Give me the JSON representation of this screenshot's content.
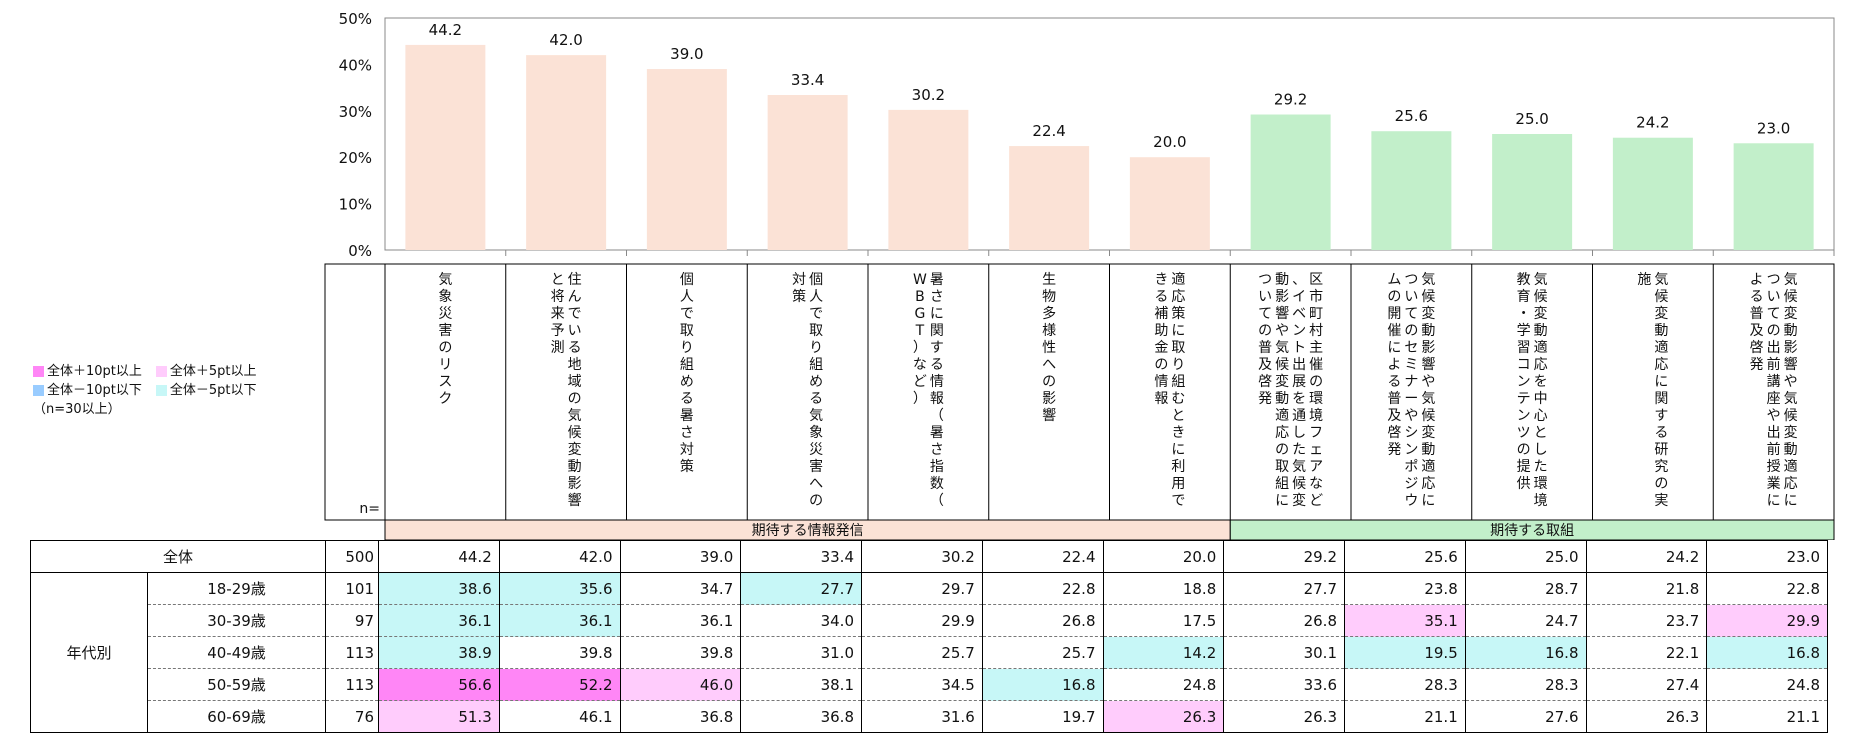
{
  "chart_data": {
    "type": "bar",
    "ylim": [
      0,
      50
    ],
    "yticks": [
      "0%",
      "10%",
      "20%",
      "30%",
      "40%",
      "50%"
    ],
    "categories": [
      "気象災害のリスク",
      "住んでいる地域の気候変動影響と将来予測",
      "個人で取り組める暑さ対策",
      "個人で取り組める気象災害への対策",
      "暑さに関する情報（暑さ指数（WBGT）など）",
      "生物多様性への影響",
      "適応策に取り組むときに利用できる補助金の情報",
      "区市町村主催の環境フェアなど、イベント出展を通した気候変動影響や気候変動適応の取組についての普及啓発",
      "気候変動影響や気候変動適応についてのセミナーやシンポジウムの開催による普及啓発",
      "気候変動適応を中心とした環境教育・学習コンテンツの提供",
      "気候変動適応に関する研究の実施",
      "気候変動影響や気候変動適応についての出前講座や出前授業による普及啓発"
    ],
    "values": [
      44.2,
      42.0,
      39.0,
      33.4,
      30.2,
      22.4,
      20.0,
      29.2,
      25.6,
      25.0,
      24.2,
      23.0
    ],
    "groups": [
      {
        "label": "期待する情報発信",
        "count": 7,
        "bar_color": "#FBE2D6",
        "head_color": "#FBE2D6"
      },
      {
        "label": "期待する取組",
        "count": 5,
        "bar_color": "#C2EFCA",
        "head_color": "#C2EFCA"
      }
    ]
  },
  "legend": {
    "items": [
      {
        "label": "全体＋10pt以上",
        "color": "#FF86F6"
      },
      {
        "label": "全体＋5pt以上",
        "color": "#FFCCFC"
      },
      {
        "label": "全体－10pt以下",
        "color": "#99CCFF"
      },
      {
        "label": "全体－5pt以下",
        "color": "#C7F7F7"
      }
    ],
    "note": "（n=30以上）"
  },
  "table": {
    "n_header": "n=",
    "group_label": "年代別",
    "total": {
      "label": "全体",
      "n": "500",
      "values": [
        "44.2",
        "42.0",
        "39.0",
        "33.4",
        "30.2",
        "22.4",
        "20.0",
        "29.2",
        "25.6",
        "25.0",
        "24.2",
        "23.0"
      ]
    },
    "rows": [
      {
        "label": "18-29歳",
        "n": "101",
        "values": [
          "38.6",
          "35.6",
          "34.7",
          "27.7",
          "29.7",
          "22.8",
          "18.8",
          "27.7",
          "23.8",
          "28.7",
          "21.8",
          "22.8"
        ],
        "highlights": [
          "minus5",
          "minus5",
          "",
          "minus5",
          "",
          "",
          "",
          "",
          "",
          "",
          "",
          ""
        ]
      },
      {
        "label": "30-39歳",
        "n": "97",
        "values": [
          "36.1",
          "36.1",
          "36.1",
          "34.0",
          "29.9",
          "26.8",
          "17.5",
          "26.8",
          "35.1",
          "24.7",
          "23.7",
          "29.9"
        ],
        "highlights": [
          "minus5",
          "minus5",
          "",
          "",
          "",
          "",
          "",
          "",
          "plus5",
          "",
          "",
          "plus5"
        ]
      },
      {
        "label": "40-49歳",
        "n": "113",
        "values": [
          "38.9",
          "39.8",
          "39.8",
          "31.0",
          "25.7",
          "25.7",
          "14.2",
          "30.1",
          "19.5",
          "16.8",
          "22.1",
          "16.8"
        ],
        "highlights": [
          "minus5",
          "",
          "",
          "",
          "",
          "",
          "minus5",
          "",
          "minus5",
          "minus5",
          "",
          "minus5"
        ]
      },
      {
        "label": "50-59歳",
        "n": "113",
        "values": [
          "56.6",
          "52.2",
          "46.0",
          "38.1",
          "34.5",
          "16.8",
          "24.8",
          "33.6",
          "28.3",
          "28.3",
          "27.4",
          "24.8"
        ],
        "highlights": [
          "plus10",
          "plus10",
          "plus5",
          "",
          "",
          "minus5",
          "",
          "",
          "",
          "",
          "",
          ""
        ]
      },
      {
        "label": "60-69歳",
        "n": "76",
        "values": [
          "51.3",
          "46.1",
          "36.8",
          "36.8",
          "31.6",
          "19.7",
          "26.3",
          "26.3",
          "21.1",
          "27.6",
          "26.3",
          "21.1"
        ],
        "highlights": [
          "plus5",
          "",
          "",
          "",
          "",
          "",
          "plus5",
          "",
          "",
          "",
          "",
          ""
        ]
      }
    ]
  },
  "highlight_colors": {
    "plus10": "#FF86F6",
    "plus5": "#FFCCFC",
    "minus10": "#99CCFF",
    "minus5": "#C7F7F7"
  }
}
